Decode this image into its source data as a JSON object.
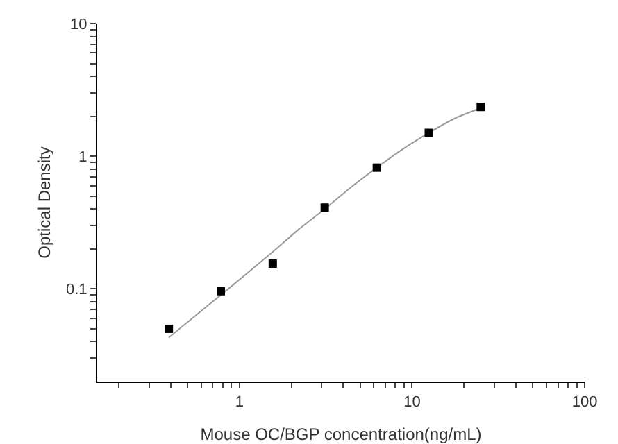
{
  "chart_data": {
    "type": "scatter",
    "xlabel": "Mouse OC/BGP concentration(ng/mL)",
    "ylabel": "Optical Density",
    "log": "xy",
    "grid": false,
    "marker": "square",
    "line_style": "solid",
    "xlim": [
      0.15,
      100
    ],
    "ylim": [
      0.02,
      10
    ],
    "xticks": [
      {
        "value": 0.2,
        "label": null
      },
      {
        "value": 0.3,
        "label": null
      },
      {
        "value": 0.4,
        "label": null
      },
      {
        "value": 0.5,
        "label": null
      },
      {
        "value": 0.6,
        "label": null
      },
      {
        "value": 0.7,
        "label": null
      },
      {
        "value": 0.8,
        "label": null
      },
      {
        "value": 0.9,
        "label": null
      },
      1,
      {
        "value": 2,
        "label": null
      },
      {
        "value": 3,
        "label": null
      },
      {
        "value": 4,
        "label": null
      },
      {
        "value": 5,
        "label": null
      },
      {
        "value": 6,
        "label": null
      },
      {
        "value": 7,
        "label": null
      },
      {
        "value": 8,
        "label": null
      },
      {
        "value": 9,
        "label": null
      },
      10,
      {
        "value": 20,
        "label": null
      },
      {
        "value": 30,
        "label": null
      },
      {
        "value": 40,
        "label": null
      },
      {
        "value": 50,
        "label": null
      },
      {
        "value": 60,
        "label": null
      },
      {
        "value": 70,
        "label": null
      },
      {
        "value": 80,
        "label": null
      },
      {
        "value": 90,
        "label": null
      },
      100
    ],
    "yticks": [
      {
        "value": 0.03,
        "label": null
      },
      {
        "value": 0.04,
        "label": null
      },
      {
        "value": 0.05,
        "label": null
      },
      {
        "value": 0.06,
        "label": null
      },
      {
        "value": 0.07,
        "label": null
      },
      {
        "value": 0.08,
        "label": null
      },
      {
        "value": 0.09,
        "label": null
      },
      0.1,
      {
        "value": 0.2,
        "label": null
      },
      {
        "value": 0.3,
        "label": null
      },
      {
        "value": 0.4,
        "label": null
      },
      {
        "value": 0.5,
        "label": null
      },
      {
        "value": 0.6,
        "label": null
      },
      {
        "value": 0.7,
        "label": null
      },
      {
        "value": 0.8,
        "label": null
      },
      {
        "value": 0.9,
        "label": null
      },
      1,
      {
        "value": 2,
        "label": null
      },
      {
        "value": 3,
        "label": null
      },
      {
        "value": 4,
        "label": null
      },
      {
        "value": 5,
        "label": null
      },
      {
        "value": 6,
        "label": null
      },
      {
        "value": 7,
        "label": null
      },
      {
        "value": 8,
        "label": null
      },
      {
        "value": 9,
        "label": null
      },
      10
    ],
    "series": [
      {
        "type": "line",
        "marker": "none",
        "color": "#999999",
        "x": [
          0.39,
          0.55,
          0.78,
          1.1,
          1.56,
          2.2,
          3.12,
          4.4,
          6.25,
          9,
          12.5,
          18,
          25
        ],
        "values": [
          0.043,
          0.062,
          0.09,
          0.13,
          0.19,
          0.28,
          0.4,
          0.58,
          0.82,
          1.15,
          1.5,
          1.95,
          2.3
        ]
      },
      {
        "color": "#000000",
        "x": [
          0.39,
          0.78,
          1.56,
          3.12,
          6.25,
          12.5,
          25
        ],
        "values": [
          0.05,
          0.096,
          0.155,
          0.41,
          0.82,
          1.5,
          2.35
        ]
      }
    ]
  }
}
